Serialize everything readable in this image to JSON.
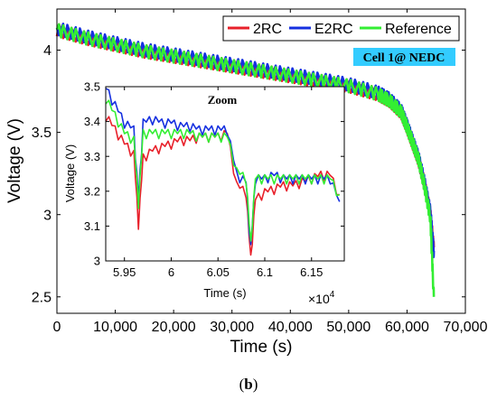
{
  "caption": {
    "open": "(",
    "letter": "b",
    "close": ")"
  },
  "chart_data": [
    {
      "type": "line",
      "xlabel": "Time (s)",
      "ylabel": "Voltage (V)",
      "xlim": [
        0,
        70000
      ],
      "ylim": [
        2.4,
        4.25
      ],
      "xticks": [
        0,
        10000,
        20000,
        30000,
        40000,
        50000,
        60000,
        70000
      ],
      "xtick_labels": [
        "0",
        "10,000",
        "20,000",
        "30,000",
        "40,000",
        "50,000",
        "60,000",
        "70,000"
      ],
      "yticks": [
        2.5,
        3,
        3.5,
        4
      ],
      "ytick_labels": [
        "2.5",
        "3",
        "3.5",
        "4"
      ],
      "legend": {
        "placement": "top-right",
        "entries": [
          "2RC",
          "E2RC",
          "Reference"
        ]
      },
      "annotation": "Cell 1@ NEDC",
      "annotation_color": "#33CCFF",
      "grid": false,
      "series": [
        {
          "name": "2RC",
          "color": "#E8202A",
          "x": [
            0,
            5000,
            10000,
            15000,
            20000,
            25000,
            30000,
            35000,
            40000,
            45000,
            50000,
            55000,
            57000,
            59000,
            60000,
            61000,
            62000,
            63000,
            64000,
            64600
          ],
          "y": [
            4.14,
            4.09,
            4.05,
            4.01,
            3.98,
            3.95,
            3.92,
            3.89,
            3.86,
            3.83,
            3.8,
            3.75,
            3.71,
            3.64,
            3.55,
            3.45,
            3.35,
            3.2,
            3.02,
            2.8
          ]
        },
        {
          "name": "E2RC",
          "color": "#1530E0",
          "x": [
            0,
            5000,
            10000,
            15000,
            20000,
            25000,
            30000,
            35000,
            40000,
            45000,
            50000,
            55000,
            57000,
            59000,
            60000,
            61000,
            62000,
            63000,
            64000,
            64600
          ],
          "y": [
            4.15,
            4.1,
            4.06,
            4.02,
            3.99,
            3.96,
            3.93,
            3.9,
            3.87,
            3.84,
            3.81,
            3.76,
            3.72,
            3.65,
            3.56,
            3.46,
            3.36,
            3.21,
            3.03,
            2.78
          ]
        },
        {
          "name": "Reference",
          "color": "#33EE33",
          "x": [
            0,
            5000,
            10000,
            15000,
            20000,
            25000,
            30000,
            35000,
            40000,
            45000,
            50000,
            55000,
            57000,
            59000,
            60000,
            61000,
            62000,
            63000,
            64000,
            64600
          ],
          "y": [
            4.14,
            4.09,
            4.05,
            4.01,
            3.98,
            3.95,
            3.92,
            3.89,
            3.86,
            3.83,
            3.8,
            3.75,
            3.71,
            3.64,
            3.55,
            3.45,
            3.35,
            3.19,
            3.0,
            2.5
          ]
        }
      ]
    },
    {
      "type": "line",
      "title": "Zoom",
      "xlabel": "Time (s)",
      "ylabel": "Voltage (V)",
      "x_multiplier": "×10",
      "x_multiplier_exp": "4",
      "xlim": [
        5.93,
        6.185
      ],
      "ylim": [
        3.0,
        3.5
      ],
      "xticks": [
        5.95,
        6.0,
        6.05,
        6.1,
        6.15
      ],
      "xtick_labels": [
        "5.95",
        "6",
        "6.05",
        "6.1",
        "6.15"
      ],
      "yticks": [
        3.0,
        3.1,
        3.2,
        3.3,
        3.4,
        3.5
      ],
      "ytick_labels": [
        "3",
        "3.1",
        "3.2",
        "3.3",
        "3.4",
        "3.5"
      ],
      "series": [
        {
          "name": "2RC",
          "color": "#E8202A",
          "x": [
            5.93,
            5.94,
            5.95,
            5.96,
            5.965,
            5.97,
            5.98,
            5.99,
            6.0,
            6.01,
            6.02,
            6.03,
            6.04,
            6.05,
            6.06,
            6.07,
            6.08,
            6.085,
            6.09,
            6.1,
            6.11,
            6.12,
            6.13,
            6.14,
            6.15,
            6.16,
            6.17,
            6.18
          ],
          "y": [
            3.42,
            3.38,
            3.34,
            3.31,
            3.11,
            3.3,
            3.32,
            3.33,
            3.34,
            3.35,
            3.35,
            3.36,
            3.36,
            3.36,
            3.37,
            3.22,
            3.2,
            3.01,
            3.18,
            3.2,
            3.21,
            3.22,
            3.22,
            3.23,
            3.24,
            3.25,
            3.25,
            3.19
          ]
        },
        {
          "name": "E2RC",
          "color": "#1530E0",
          "x": [
            5.93,
            5.94,
            5.95,
            5.96,
            5.965,
            5.97,
            5.98,
            5.99,
            6.0,
            6.01,
            6.02,
            6.03,
            6.04,
            6.05,
            6.06,
            6.07,
            6.08,
            6.085,
            6.09,
            6.1,
            6.11,
            6.12,
            6.13,
            6.14,
            6.15,
            6.16,
            6.17,
            6.18
          ],
          "y": [
            3.5,
            3.45,
            3.4,
            3.38,
            3.18,
            3.4,
            3.41,
            3.4,
            3.4,
            3.39,
            3.39,
            3.38,
            3.38,
            3.38,
            3.38,
            3.25,
            3.23,
            3.04,
            3.24,
            3.24,
            3.25,
            3.24,
            3.24,
            3.24,
            3.24,
            3.24,
            3.24,
            3.17
          ]
        },
        {
          "name": "Reference",
          "color": "#33EE33",
          "x": [
            5.93,
            5.94,
            5.95,
            5.96,
            5.965,
            5.97,
            5.98,
            5.99,
            6.0,
            6.01,
            6.02,
            6.03,
            6.04,
            6.05,
            6.06,
            6.07,
            6.08,
            6.085,
            6.09,
            6.1,
            6.11,
            6.12,
            6.13,
            6.14,
            6.15,
            6.16,
            6.17,
            6.18
          ],
          "y": [
            3.47,
            3.42,
            3.37,
            3.35,
            3.17,
            3.37,
            3.37,
            3.37,
            3.37,
            3.37,
            3.37,
            3.36,
            3.36,
            3.36,
            3.36,
            3.26,
            3.24,
            3.05,
            3.24,
            3.24,
            3.24,
            3.24,
            3.24,
            3.24,
            3.24,
            3.24,
            3.24,
            3.19
          ]
        }
      ]
    }
  ]
}
